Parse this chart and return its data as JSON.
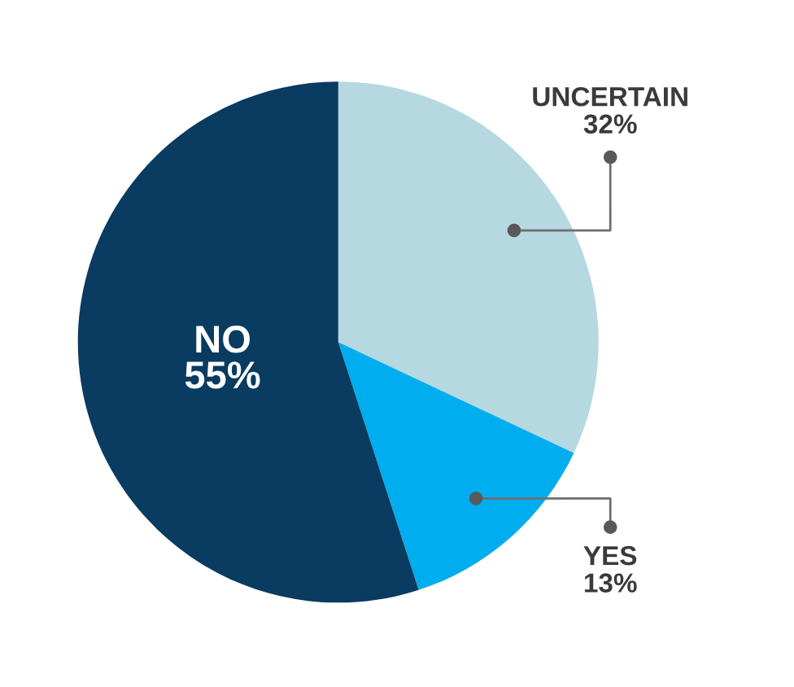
{
  "chart_data": {
    "type": "pie",
    "categories": [
      "UNCERTAIN",
      "YES",
      "NO"
    ],
    "values": [
      32,
      13,
      55
    ],
    "colors": [
      "#b5d8e1",
      "#00adee",
      "#0a3b60"
    ],
    "value_labels": [
      "32%",
      "13%",
      "55%"
    ],
    "legend": false
  }
}
